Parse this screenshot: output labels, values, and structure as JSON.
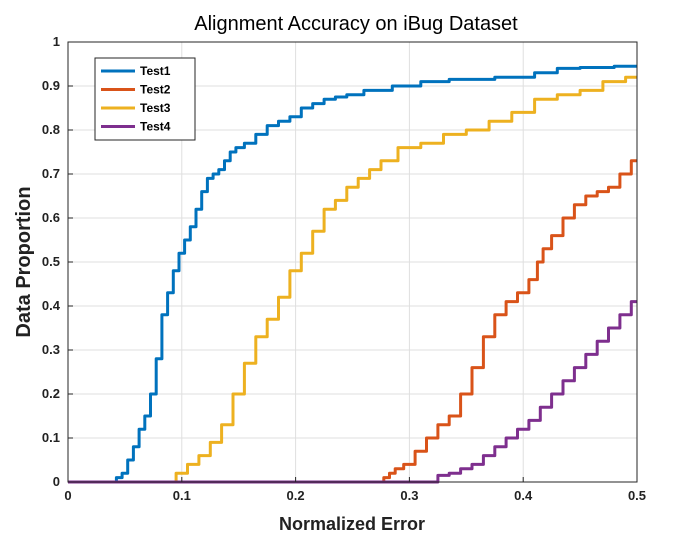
{
  "chart_data": {
    "type": "line",
    "title": "Alignment Accuracy on iBug Dataset",
    "xlabel": "Normalized Error",
    "ylabel": "Data Proportion",
    "xlim": [
      0,
      0.5
    ],
    "ylim": [
      0,
      1
    ],
    "grid": true,
    "legend_position": "top-left",
    "x_ticks": [
      "0",
      "0.1",
      "0.2",
      "0.3",
      "0.4",
      "0.5"
    ],
    "y_ticks": [
      "0",
      "0.1",
      "0.2",
      "0.3",
      "0.4",
      "0.5",
      "0.6",
      "0.7",
      "0.8",
      "0.9",
      "1"
    ],
    "series": [
      {
        "name": "Test1",
        "color": "#0072BD",
        "x": [
          0,
          0.04,
          0.045,
          0.05,
          0.055,
          0.06,
          0.065,
          0.07,
          0.075,
          0.08,
          0.085,
          0.09,
          0.095,
          0.1,
          0.105,
          0.11,
          0.115,
          0.12,
          0.125,
          0.13,
          0.135,
          0.14,
          0.145,
          0.15,
          0.16,
          0.17,
          0.18,
          0.19,
          0.2,
          0.21,
          0.22,
          0.23,
          0.24,
          0.25,
          0.27,
          0.3,
          0.32,
          0.35,
          0.4,
          0.42,
          0.44,
          0.46,
          0.5
        ],
        "y": [
          0,
          0,
          0.01,
          0.02,
          0.05,
          0.08,
          0.12,
          0.15,
          0.2,
          0.28,
          0.38,
          0.43,
          0.48,
          0.52,
          0.55,
          0.58,
          0.62,
          0.66,
          0.69,
          0.7,
          0.71,
          0.73,
          0.75,
          0.76,
          0.77,
          0.79,
          0.81,
          0.82,
          0.83,
          0.85,
          0.86,
          0.87,
          0.875,
          0.88,
          0.89,
          0.9,
          0.91,
          0.915,
          0.92,
          0.93,
          0.94,
          0.942,
          0.945
        ]
      },
      {
        "name": "Test2",
        "color": "#D95319",
        "x": [
          0,
          0.275,
          0.28,
          0.285,
          0.29,
          0.3,
          0.31,
          0.32,
          0.33,
          0.34,
          0.35,
          0.36,
          0.37,
          0.38,
          0.39,
          0.4,
          0.41,
          0.415,
          0.42,
          0.43,
          0.44,
          0.45,
          0.46,
          0.47,
          0.48,
          0.49,
          0.5
        ],
        "y": [
          0,
          0,
          0.01,
          0.02,
          0.03,
          0.04,
          0.07,
          0.1,
          0.13,
          0.15,
          0.2,
          0.26,
          0.33,
          0.38,
          0.41,
          0.43,
          0.46,
          0.5,
          0.53,
          0.56,
          0.6,
          0.63,
          0.65,
          0.66,
          0.67,
          0.7,
          0.73
        ]
      },
      {
        "name": "Test3",
        "color": "#EDB120",
        "x": [
          0,
          0.09,
          0.1,
          0.11,
          0.12,
          0.13,
          0.14,
          0.15,
          0.16,
          0.17,
          0.18,
          0.19,
          0.2,
          0.21,
          0.22,
          0.23,
          0.24,
          0.25,
          0.26,
          0.27,
          0.28,
          0.3,
          0.32,
          0.34,
          0.36,
          0.38,
          0.4,
          0.42,
          0.44,
          0.46,
          0.48,
          0.5
        ],
        "y": [
          0,
          0,
          0.02,
          0.04,
          0.06,
          0.09,
          0.13,
          0.2,
          0.27,
          0.33,
          0.37,
          0.42,
          0.48,
          0.52,
          0.57,
          0.62,
          0.64,
          0.67,
          0.69,
          0.71,
          0.73,
          0.76,
          0.77,
          0.79,
          0.8,
          0.82,
          0.84,
          0.87,
          0.88,
          0.89,
          0.91,
          0.92
        ]
      },
      {
        "name": "Test4",
        "color": "#7E2F8E",
        "x": [
          0,
          0.32,
          0.33,
          0.34,
          0.35,
          0.36,
          0.37,
          0.38,
          0.39,
          0.4,
          0.41,
          0.42,
          0.43,
          0.44,
          0.45,
          0.46,
          0.47,
          0.48,
          0.49,
          0.5
        ],
        "y": [
          0,
          0,
          0.015,
          0.02,
          0.03,
          0.04,
          0.06,
          0.08,
          0.1,
          0.12,
          0.14,
          0.17,
          0.2,
          0.23,
          0.26,
          0.29,
          0.32,
          0.35,
          0.38,
          0.41
        ]
      }
    ]
  }
}
